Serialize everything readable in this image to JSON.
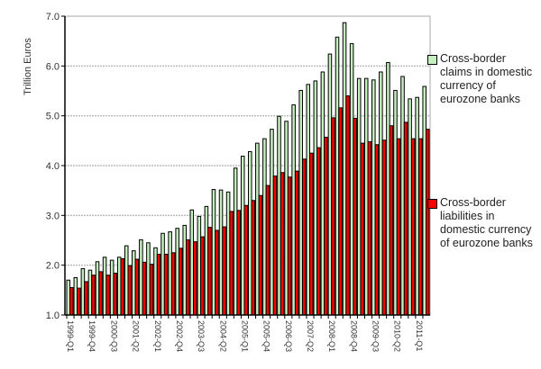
{
  "chart_data": {
    "type": "bar",
    "title": "",
    "xlabel": "",
    "ylabel": "Trillion Euros",
    "ylim": [
      1.0,
      7.0
    ],
    "yticks": [
      "1.0",
      "2.0",
      "3.0",
      "4.0",
      "5.0",
      "6.0",
      "7.0"
    ],
    "grid": true,
    "legend_position": "right",
    "x_tick_labels": [
      "1999-Q1",
      "1999-Q4",
      "2000-Q3",
      "2001-Q2",
      "2002-Q1",
      "2002-Q4",
      "2003-Q3",
      "2004-Q2",
      "2005-Q1",
      "2005-Q4",
      "2006-Q3",
      "2007-Q2",
      "2008-Q1",
      "2008-Q4",
      "2009-Q3",
      "2010-Q2",
      "2011-Q1"
    ],
    "first_quarter": "1999-Q1",
    "series": [
      {
        "name": "Cross-border claims in domestic currency of eurozone banks",
        "color": "#c6efc0",
        "values": [
          1.7,
          1.75,
          1.93,
          1.9,
          2.07,
          2.16,
          2.1,
          2.16,
          2.39,
          2.29,
          2.51,
          2.45,
          2.35,
          2.64,
          2.67,
          2.74,
          2.8,
          3.11,
          2.98,
          3.18,
          3.52,
          3.51,
          3.47,
          3.95,
          4.19,
          4.28,
          4.45,
          4.54,
          4.73,
          4.99,
          4.89,
          5.22,
          5.51,
          5.63,
          5.7,
          5.88,
          6.24,
          6.58,
          6.87,
          6.45,
          5.75,
          5.75,
          5.72,
          5.88,
          6.07,
          5.51,
          5.79,
          5.34,
          5.37,
          5.59
        ]
      },
      {
        "name": "Cross-border liabilities in domestic currency of eurozone banks",
        "color": "#ff0000",
        "values": [
          1.55,
          1.54,
          1.67,
          1.8,
          1.87,
          1.8,
          1.84,
          2.13,
          1.99,
          2.12,
          2.06,
          2.02,
          2.22,
          2.22,
          2.25,
          2.34,
          2.51,
          2.47,
          2.57,
          2.76,
          2.7,
          2.77,
          3.08,
          3.1,
          3.2,
          3.3,
          3.4,
          3.6,
          3.79,
          3.86,
          3.77,
          3.89,
          4.13,
          4.25,
          4.36,
          4.57,
          4.96,
          5.16,
          5.4,
          4.95,
          4.45,
          4.48,
          4.42,
          4.51,
          4.8,
          4.54,
          4.87,
          4.54,
          4.54,
          4.73
        ]
      }
    ]
  }
}
